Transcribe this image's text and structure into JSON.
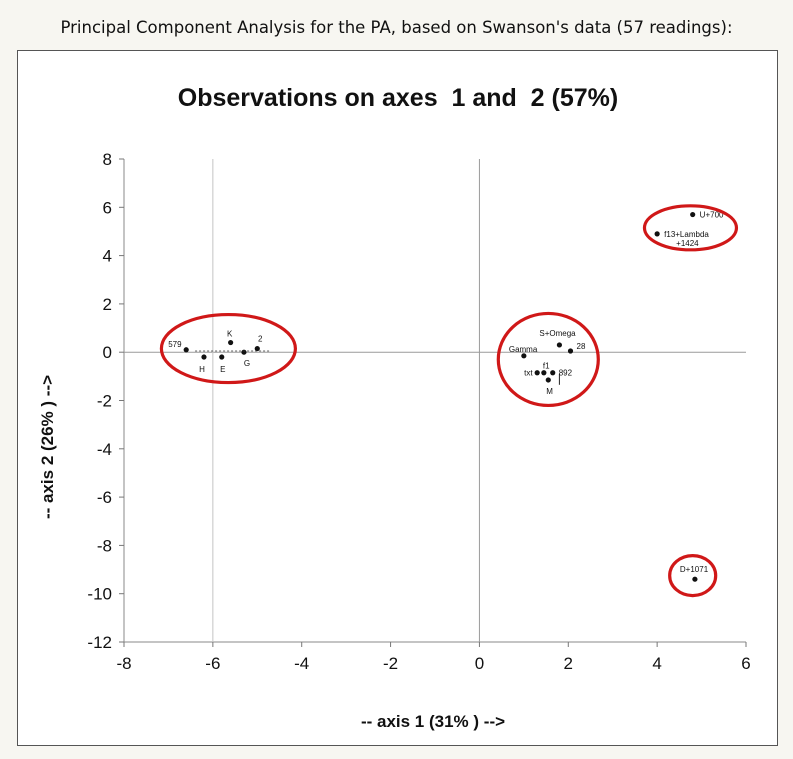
{
  "caption": "Principal Component Analysis for the PA, based on Swanson's data (57 readings):",
  "chart_data": {
    "type": "scatter",
    "title": "Observations on axes  1 and  2 (57%)",
    "xlabel": "-- axis 1 (31% ) -->",
    "ylabel": "-- axis 2 (26% ) -->",
    "xlim": [
      -8,
      6
    ],
    "ylim": [
      -12,
      8
    ],
    "xticks": [
      "-8",
      "-6",
      "-4",
      "-2",
      "0",
      "2",
      "4",
      "6"
    ],
    "yticks": [
      "8",
      "6",
      "4",
      "2",
      "0",
      "-2",
      "-4",
      "-6",
      "-8",
      "-10",
      "-12"
    ],
    "grid": false,
    "points": [
      {
        "label": "579",
        "x": -6.6,
        "y": 0.1
      },
      {
        "label": "H",
        "x": -6.2,
        "y": -0.2
      },
      {
        "label": "E",
        "x": -5.8,
        "y": -0.2
      },
      {
        "label": "K",
        "x": -5.6,
        "y": 0.4
      },
      {
        "label": "G",
        "x": -5.3,
        "y": 0.0
      },
      {
        "label": "2",
        "x": -5.0,
        "y": 0.15
      },
      {
        "label": "Gamma",
        "x": 1.0,
        "y": -0.15
      },
      {
        "label": "S+Omega",
        "x": 1.8,
        "y": 0.3
      },
      {
        "label": "28",
        "x": 2.05,
        "y": 0.05
      },
      {
        "label": "txt",
        "x": 1.3,
        "y": -0.85
      },
      {
        "label": "f1",
        "x": 1.45,
        "y": -0.85
      },
      {
        "label": "892",
        "x": 1.65,
        "y": -0.85
      },
      {
        "label": "M",
        "x": 1.55,
        "y": -1.15
      },
      {
        "label": "U+700",
        "x": 4.8,
        "y": 5.7
      },
      {
        "label": "f13+Lambda",
        "label2": "+1424",
        "x": 4.0,
        "y": 4.9
      },
      {
        "label": "D+1071",
        "x": 4.85,
        "y": -9.4
      }
    ],
    "annotations": [
      "red circles enclosing four clusters of points"
    ]
  }
}
